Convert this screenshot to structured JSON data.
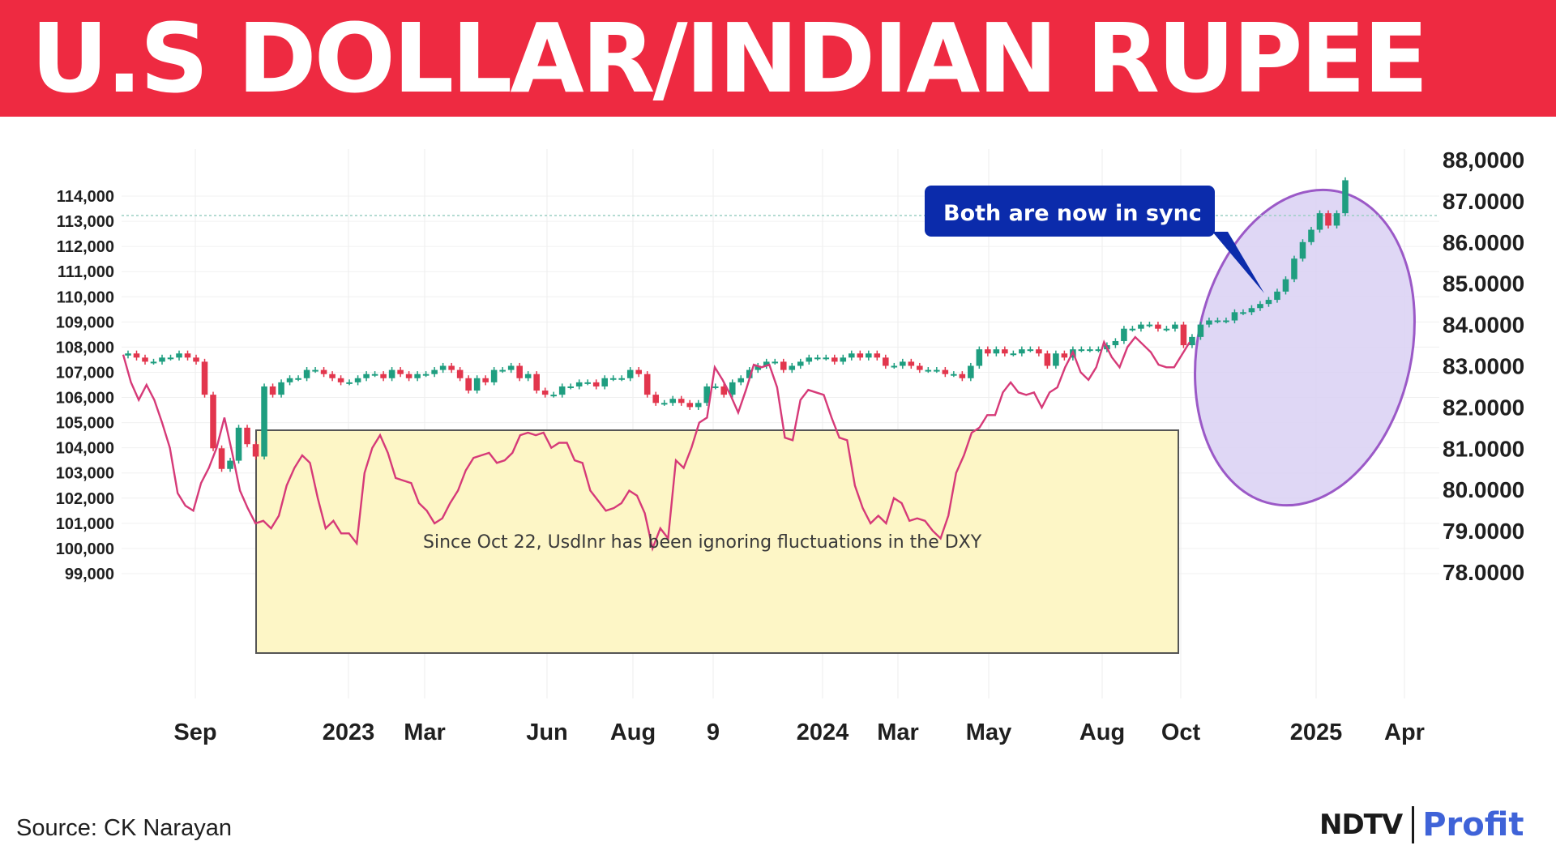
{
  "header": {
    "title": "U.S DOLLAR/INDIAN RUPEE"
  },
  "source": "Source: CK Narayan",
  "brand": {
    "primary": "NDTV",
    "secondary": "Profit"
  },
  "colors": {
    "banner": "#ee2a41",
    "dxy_line": "#d63a78",
    "candle_up": "#1f9e80",
    "candle_down": "#e2364d",
    "range_box_fill": "#fdf6c6",
    "callout_fill": "#0b2bab",
    "ellipse_fill": "#d9d0f3",
    "ellipse_stroke": "#9b59c7"
  },
  "chart_data": {
    "type": "line",
    "title": "U.S DOLLAR/INDIAN RUPEE",
    "x_ticks": [
      "Sep",
      "2023",
      "Mar",
      "Jun",
      "Aug",
      "9",
      "2024",
      "Mar",
      "May",
      "Aug",
      "Oct",
      "2025",
      "Apr"
    ],
    "y_left": {
      "min": 99000,
      "max": 114000,
      "ticks": [
        "114,000",
        "113,000",
        "112,000",
        "111,000",
        "110,000",
        "109,000",
        "108,000",
        "107,000",
        "106,000",
        "105,000",
        "104,000",
        "103,000",
        "102,000",
        "101,000",
        "100,000",
        "99,000"
      ]
    },
    "y_right": {
      "min": 78,
      "max": 88,
      "ticks": [
        "88,0000",
        "87.0000",
        "86.0000",
        "85.0000",
        "84.0000",
        "83.0000",
        "82.0000",
        "81.0000",
        "80.0000",
        "79.0000",
        "78.0000"
      ]
    },
    "series": [
      {
        "axis": "left",
        "values": [
          107700,
          106600,
          105900,
          106500,
          105900,
          105000,
          104000,
          102200,
          101700,
          101500,
          102600,
          103200,
          104000,
          105200,
          103800,
          102300,
          101600,
          101000,
          101100,
          100800,
          101300,
          102500,
          103200,
          103700,
          103400,
          102000,
          100800,
          101100,
          100600,
          100600,
          100200,
          103000,
          104000,
          104500,
          103800,
          102800,
          102700,
          102600,
          101800,
          101500,
          101000,
          101200,
          101800,
          102300,
          103100,
          103600,
          103700,
          103800,
          103400,
          103500,
          103800,
          104500,
          104600,
          104500,
          104600,
          104000,
          104200,
          104200,
          103500,
          103400,
          102300,
          101900,
          101500,
          101600,
          101800,
          102300,
          102100,
          101400,
          100000,
          100800,
          100400,
          103500,
          103200,
          104000,
          105000,
          105200,
          107200,
          106700,
          106100,
          105400,
          106300,
          107300,
          107200,
          107300,
          106400,
          104400,
          104300,
          105900,
          106300,
          106200,
          106100,
          105200,
          104400,
          104300,
          102500,
          101600,
          101000,
          101300,
          101000,
          102000,
          101800,
          101100,
          101200,
          101100,
          100700,
          100400,
          101300,
          103000,
          103700,
          104600,
          104800,
          105300,
          105300,
          106200,
          106600,
          106200,
          106100,
          106200,
          105600,
          106200,
          106400,
          107200,
          107800,
          107000,
          106700,
          107200,
          108200,
          107600,
          107200,
          108000,
          108400,
          108100,
          107800,
          107300,
          107200,
          107200,
          107700,
          108200
        ]
      },
      {
        "axis": "right",
        "values": [
          83.3,
          83.2,
          83.1,
          83.1,
          83.2,
          83.2,
          83.3,
          83.2,
          83.1,
          82.3,
          81.0,
          80.5,
          80.7,
          81.5,
          81.1,
          80.8,
          82.5,
          82.3,
          82.6,
          82.7,
          82.7,
          82.9,
          82.9,
          82.8,
          82.7,
          82.6,
          82.6,
          82.7,
          82.8,
          82.8,
          82.7,
          82.9,
          82.8,
          82.7,
          82.8,
          82.8,
          82.9,
          83.0,
          82.9,
          82.7,
          82.4,
          82.7,
          82.6,
          82.9,
          82.9,
          83.0,
          82.7,
          82.8,
          82.4,
          82.3,
          82.3,
          82.5,
          82.5,
          82.6,
          82.6,
          82.5,
          82.7,
          82.7,
          82.7,
          82.9,
          82.8,
          82.3,
          82.1,
          82.1,
          82.2,
          82.1,
          82.0,
          82.1,
          82.5,
          82.5,
          82.3,
          82.6,
          82.7,
          82.9,
          83.0,
          83.1,
          83.1,
          82.9,
          83.0,
          83.1,
          83.2,
          83.2,
          83.2,
          83.1,
          83.2,
          83.3,
          83.2,
          83.3,
          83.2,
          83.0,
          83.0,
          83.1,
          83.0,
          82.9,
          82.9,
          82.9,
          82.8,
          82.8,
          82.7,
          83.0,
          83.4,
          83.3,
          83.4,
          83.3,
          83.3,
          83.4,
          83.4,
          83.3,
          83.0,
          83.3,
          83.2,
          83.4,
          83.4,
          83.4,
          83.4,
          83.5,
          83.6,
          83.9,
          83.9,
          84.0,
          84.0,
          83.9,
          83.9,
          84.0,
          83.5,
          83.7,
          84.0,
          84.1,
          84.1,
          84.1,
          84.3,
          84.3,
          84.4,
          84.5,
          84.6,
          84.8,
          85.1,
          85.6,
          86.0,
          86.3,
          86.7,
          86.4,
          86.7,
          87.5
        ]
      }
    ],
    "annotations": [
      "Since Oct 22, UsdInr has been ignoring fluctuations in the DXY",
      "Both are now in sync"
    ]
  }
}
